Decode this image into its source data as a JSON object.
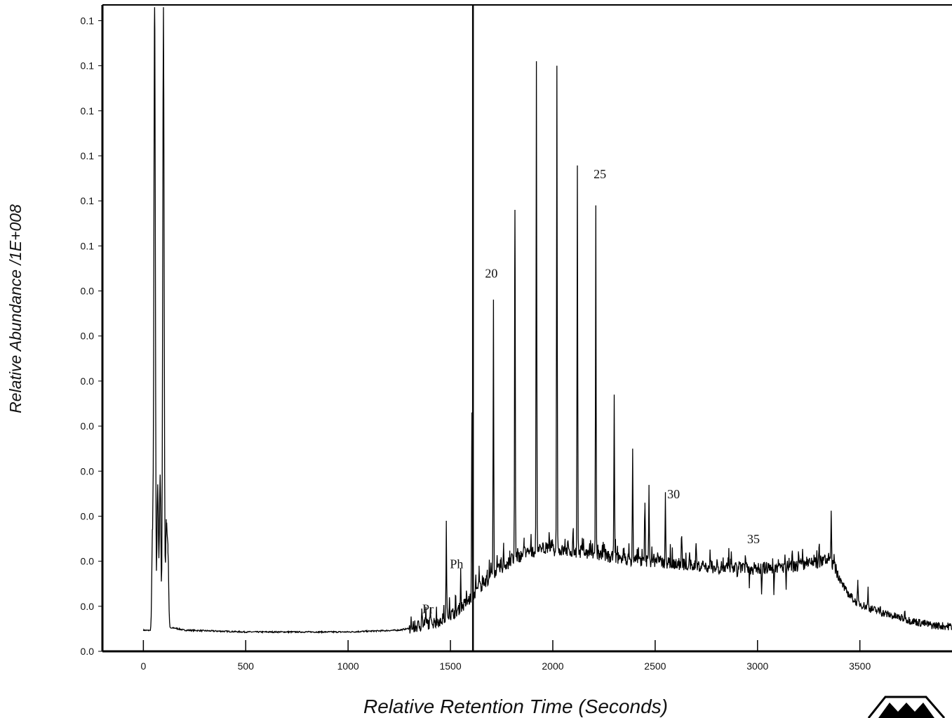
{
  "chart_data": {
    "type": "line",
    "xlabel": "Relative Retention Time (Seconds)",
    "ylabel": "Relative Abundance /1E+008",
    "xlim": [
      -200,
      3950
    ],
    "xticks": [
      0,
      500,
      1000,
      1500,
      2000,
      2500,
      3000,
      3500
    ],
    "ylim": [
      0,
      0.1435
    ],
    "yticks": [
      {
        "value": 0.0,
        "label": "0.0"
      },
      {
        "value": 0.01,
        "label": "0.0"
      },
      {
        "value": 0.02,
        "label": "0.0"
      },
      {
        "value": 0.03,
        "label": "0.0"
      },
      {
        "value": 0.04,
        "label": "0.0"
      },
      {
        "value": 0.05,
        "label": "0.0"
      },
      {
        "value": 0.06,
        "label": "0.0"
      },
      {
        "value": 0.07,
        "label": "0.0"
      },
      {
        "value": 0.08,
        "label": "0.0"
      },
      {
        "value": 0.09,
        "label": "0.1"
      },
      {
        "value": 0.1,
        "label": "0.1"
      },
      {
        "value": 0.11,
        "label": "0.1"
      },
      {
        "value": 0.12,
        "label": "0.1"
      },
      {
        "value": 0.13,
        "label": "0.1"
      },
      {
        "value": 0.14,
        "label": "0.1"
      }
    ],
    "vertical_line_x": 1610,
    "baseline": [
      [
        0,
        0.0047
      ],
      [
        40,
        0.0046
      ],
      [
        150,
        0.0052
      ],
      [
        200,
        0.0047
      ],
      [
        500,
        0.0043
      ],
      [
        1000,
        0.0043
      ],
      [
        1250,
        0.0047
      ],
      [
        1300,
        0.0051
      ],
      [
        1380,
        0.0061
      ],
      [
        1450,
        0.0068
      ],
      [
        1500,
        0.008
      ],
      [
        1550,
        0.0096
      ],
      [
        1600,
        0.0118
      ],
      [
        1650,
        0.0146
      ],
      [
        1700,
        0.0168
      ],
      [
        1750,
        0.0186
      ],
      [
        1800,
        0.0202
      ],
      [
        1850,
        0.0214
      ],
      [
        1900,
        0.0222
      ],
      [
        1950,
        0.0225
      ],
      [
        2000,
        0.0225
      ],
      [
        2100,
        0.0222
      ],
      [
        2200,
        0.0215
      ],
      [
        2300,
        0.0208
      ],
      [
        2400,
        0.0203
      ],
      [
        2500,
        0.02
      ],
      [
        2600,
        0.0195
      ],
      [
        2700,
        0.019
      ],
      [
        2800,
        0.0186
      ],
      [
        2900,
        0.0184
      ],
      [
        3000,
        0.0184
      ],
      [
        3100,
        0.0186
      ],
      [
        3200,
        0.019
      ],
      [
        3300,
        0.0198
      ],
      [
        3350,
        0.0205
      ],
      [
        3380,
        0.0185
      ],
      [
        3420,
        0.014
      ],
      [
        3480,
        0.011
      ],
      [
        3550,
        0.0095
      ],
      [
        3650,
        0.008
      ],
      [
        3750,
        0.0068
      ],
      [
        3850,
        0.0058
      ],
      [
        3950,
        0.0055
      ]
    ],
    "peaks": [
      [
        45,
        0.027
      ],
      [
        55,
        0.143
      ],
      [
        70,
        0.037
      ],
      [
        82,
        0.039
      ],
      [
        98,
        0.143
      ],
      [
        112,
        0.028
      ],
      [
        120,
        0.022
      ],
      [
        1360,
        0.0095
      ],
      [
        1480,
        0.028
      ],
      [
        1495,
        0.012
      ],
      [
        1550,
        0.018
      ],
      [
        1605,
        0.053
      ],
      [
        1640,
        0.019
      ],
      [
        1680,
        0.016
      ],
      [
        1710,
        0.078
      ],
      [
        1760,
        0.023
      ],
      [
        1790,
        0.021
      ],
      [
        1815,
        0.098
      ],
      [
        1860,
        0.023
      ],
      [
        1880,
        0.022
      ],
      [
        1920,
        0.131
      ],
      [
        1950,
        0.024
      ],
      [
        1980,
        0.023
      ],
      [
        2020,
        0.13
      ],
      [
        2060,
        0.024
      ],
      [
        2100,
        0.026
      ],
      [
        2120,
        0.107
      ],
      [
        2150,
        0.025
      ],
      [
        2180,
        0.023
      ],
      [
        2210,
        0.099
      ],
      [
        2250,
        0.022
      ],
      [
        2300,
        0.057
      ],
      [
        2350,
        0.021
      ],
      [
        2390,
        0.045
      ],
      [
        2450,
        0.033
      ],
      [
        2470,
        0.036
      ],
      [
        2550,
        0.034
      ],
      [
        2630,
        0.025
      ],
      [
        2700,
        0.024
      ],
      [
        2770,
        0.02
      ],
      [
        2830,
        0.019
      ],
      [
        2900,
        0.017
      ],
      [
        2960,
        0.014
      ],
      [
        3020,
        0.013
      ],
      [
        3080,
        0.013
      ],
      [
        3140,
        0.014
      ],
      [
        3200,
        0.022
      ],
      [
        3240,
        0.021
      ],
      [
        3300,
        0.023
      ],
      [
        3360,
        0.031
      ],
      [
        3420,
        0.015
      ],
      [
        3490,
        0.015
      ],
      [
        3540,
        0.014
      ],
      [
        3600,
        0.01
      ],
      [
        3720,
        0.009
      ]
    ],
    "annotations": [
      {
        "text": "Pr",
        "x": 1390,
        "y": 0.0085
      },
      {
        "text": "Ph",
        "x": 1530,
        "y": 0.0185
      },
      {
        "text": "20",
        "x": 1700,
        "y": 0.083
      },
      {
        "text": "25",
        "x": 2230,
        "y": 0.105
      },
      {
        "text": "30",
        "x": 2590,
        "y": 0.034
      },
      {
        "text": "35",
        "x": 2980,
        "y": 0.024
      }
    ]
  },
  "logo": {
    "name": "manufacturer-logo",
    "color": "#000000"
  }
}
